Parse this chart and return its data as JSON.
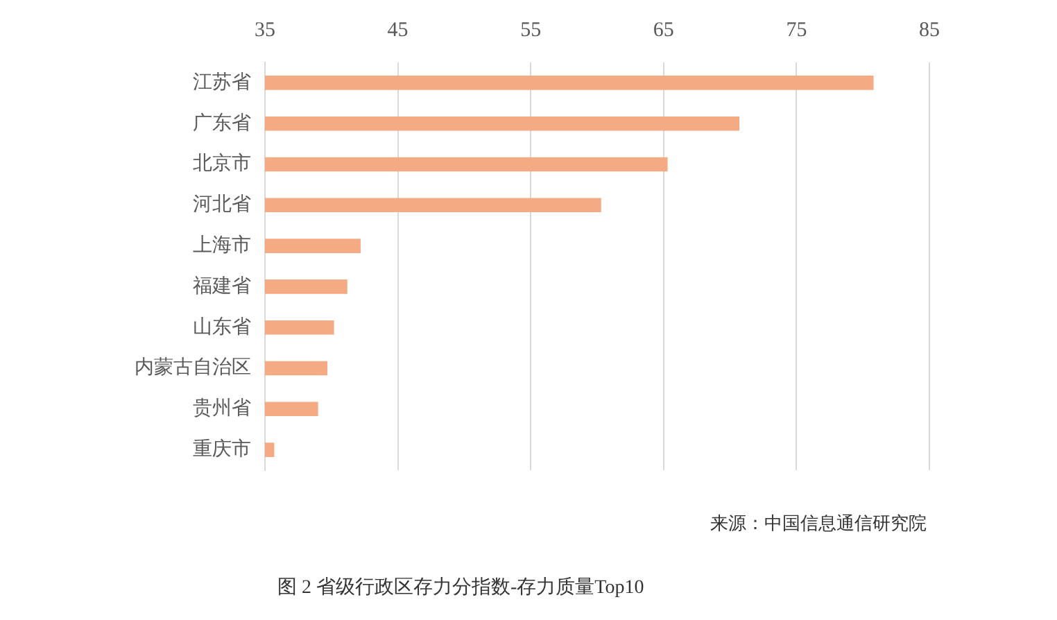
{
  "chart_data": {
    "type": "bar",
    "orientation": "horizontal",
    "title": "图 2 省级行政区存力分指数-存力质量Top10",
    "categories": [
      "江苏省",
      "广东省",
      "北京市",
      "河北省",
      "上海市",
      "福建省",
      "山东省",
      "内蒙古自治区",
      "贵州省",
      "重庆市"
    ],
    "values": [
      80.8,
      70.7,
      65.3,
      60.3,
      42.2,
      41.2,
      40.2,
      39.7,
      39.0,
      35.7
    ],
    "color": "#f4ab84",
    "xlim": [
      35,
      85
    ],
    "xticks": [
      35,
      45,
      55,
      65,
      75,
      85
    ],
    "grid": "x",
    "annotations": [
      "来源：中国信息通信研究院"
    ]
  }
}
